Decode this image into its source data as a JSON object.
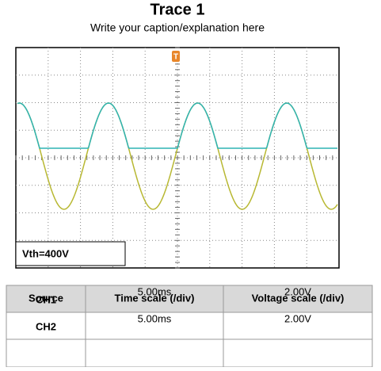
{
  "title": "Trace 1",
  "caption": "Write your caption/explanation here",
  "scope": {
    "trigger": "T",
    "annotation": "Vth=400V"
  },
  "table": {
    "header": [
      "Source",
      "Time scale (/div)",
      "Voltage scale (/div)"
    ],
    "rows": [
      [
        "CH1",
        "5.00ms",
        "2.00V"
      ],
      [
        "CH2",
        "5.00ms",
        "2.00V"
      ]
    ]
  }
}
